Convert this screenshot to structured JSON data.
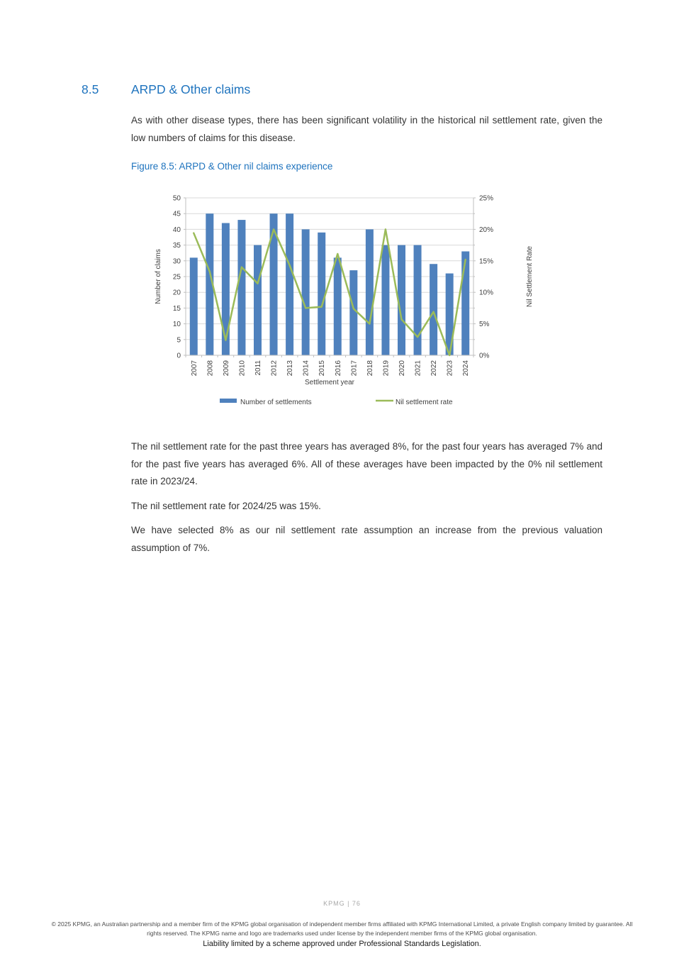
{
  "page": {
    "section_number": "8.5",
    "section_title": "ARPD & Other claims",
    "intro_paragraph": "As with other disease types, there has been significant volatility in the historical nil settlement rate, given the low numbers of claims for this disease.",
    "figure_caption": "Figure 8.5: ARPD & Other nil claims experience"
  },
  "chart_data": {
    "type": "bar",
    "subtype": "combo-bar-line-dual-axis",
    "categories": [
      "2007",
      "2008",
      "2009",
      "2010",
      "2011",
      "2012",
      "2013",
      "2014",
      "2015",
      "2016",
      "2017",
      "2018",
      "2019",
      "2020",
      "2021",
      "2022",
      "2023",
      "2024"
    ],
    "series": [
      {
        "name": "Number of settlements",
        "type": "bar",
        "axis": "left",
        "color": "#4f81bd",
        "values": [
          31,
          45,
          42,
          43,
          35,
          45,
          45,
          40,
          39,
          31,
          27,
          40,
          35,
          35,
          35,
          29,
          26,
          33
        ]
      },
      {
        "name": "Nil settlement rate",
        "type": "line",
        "axis": "right",
        "color": "#9bbb59",
        "values": [
          19.4,
          13.3,
          2.4,
          14.0,
          11.4,
          20.0,
          14.3,
          7.5,
          7.7,
          16.1,
          7.4,
          5.0,
          20.0,
          5.7,
          2.9,
          6.9,
          0.0,
          15.2
        ]
      }
    ],
    "title": "",
    "xlabel": "Settlement year",
    "left_axis": {
      "label": "Number of claims",
      "min": 0,
      "max": 50,
      "step": 5
    },
    "right_axis": {
      "label": "Nil Settlement Rate",
      "min": 0,
      "max": 25,
      "step": 5,
      "suffix": "%"
    },
    "grid": true,
    "legend_position": "bottom",
    "colors": {
      "grid": "#d9d9d9",
      "axis": "#bfbfbf",
      "text": "#404040"
    }
  },
  "body_paragraphs": [
    "The nil settlement rate for the past three years has averaged 8%, for the past four years has averaged 7% and for the past five years has averaged 6%. All of these averages have been impacted by the 0% nil settlement rate in 2023/24.",
    "The nil settlement rate for 2024/25 was 15%.",
    "We have selected 8% as our nil settlement rate assumption an increase from the previous valuation assumption of 7%."
  ],
  "footer": {
    "page_label": "KPMG | 76",
    "copyright": "© 2025 KPMG, an Australian partnership and a member firm of the KPMG global organisation of independent member firms affiliated with KPMG International Limited, a private English company limited by guarantee. All rights reserved. The KPMG name and logo are trademarks used under license by the independent member firms of the KPMG global organisation.",
    "liability": "Liability limited by a scheme approved under Professional Standards Legislation."
  }
}
